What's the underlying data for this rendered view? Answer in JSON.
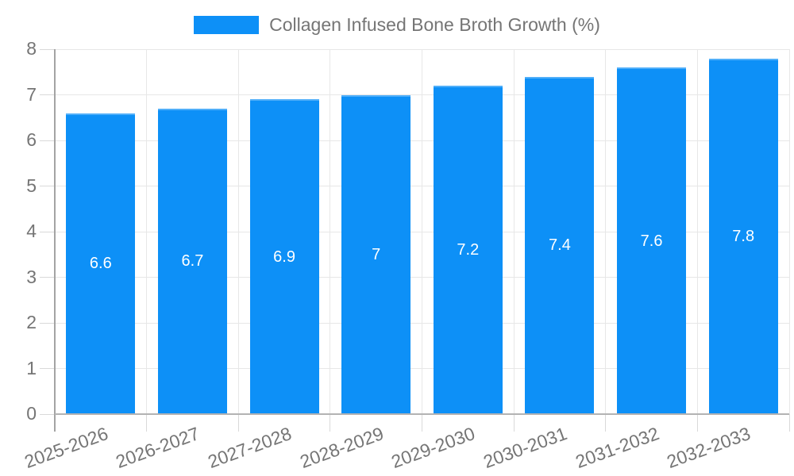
{
  "legend": {
    "label": "Collagen Infused Bone Broth Growth (%)"
  },
  "chart_data": {
    "type": "bar",
    "title": "Collagen Infused Bone Broth Growth (%)",
    "categories": [
      "2025-2026",
      "2026-2027",
      "2027-2028",
      "2028-2029",
      "2029-2030",
      "2030-2031",
      "2031-2032",
      "2032-2033"
    ],
    "values": [
      6.6,
      6.7,
      6.9,
      7,
      7.2,
      7.4,
      7.6,
      7.8
    ],
    "value_labels": [
      "6.6",
      "6.7",
      "6.9",
      "7",
      "7.2",
      "7.4",
      "7.6",
      "7.8"
    ],
    "xlabel": "",
    "ylabel": "",
    "ylim": [
      0,
      8
    ],
    "ytick_interval": 1,
    "ytick_labels": [
      "0",
      "1",
      "2",
      "3",
      "4",
      "5",
      "6",
      "7",
      "8"
    ],
    "grid": true,
    "legend_position": "top",
    "colors": {
      "bar": "#0d90f7",
      "value_label": "#ffffff",
      "axis_text": "#757575",
      "gridline": "#e7e7e7",
      "axis_line": "#a3a3a3",
      "baseline": "#b3b3b3",
      "outer_tick": "#d9d9d9"
    }
  }
}
